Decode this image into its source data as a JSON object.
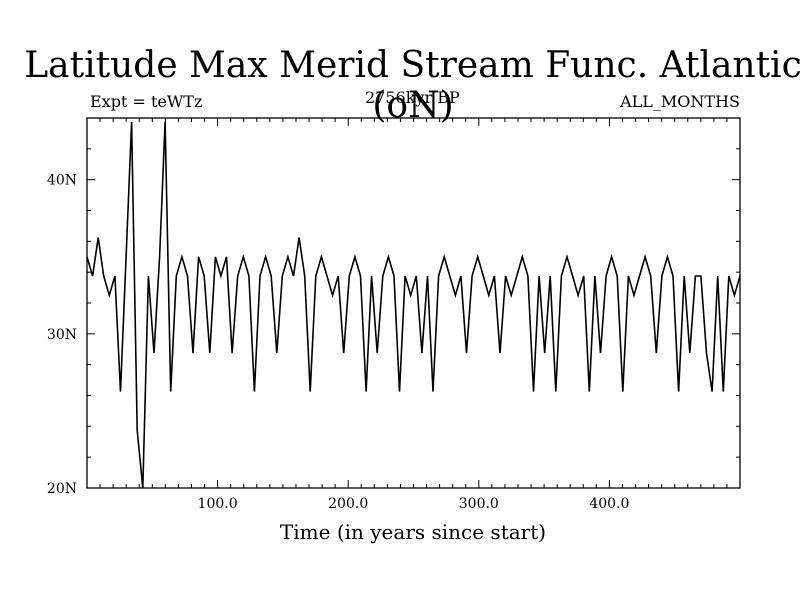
{
  "chart_data": {
    "type": "line",
    "title": "Latitude Max Merid Stream Func. Atlantic (oN)",
    "subtitle_left": "Expt = teWTz",
    "subtitle_center": "2756kyr BP",
    "subtitle_right": "ALL_MONTHS",
    "xlabel": "Time (in years since start)",
    "ylabel": "",
    "xlim": [
      0,
      500
    ],
    "ylim": [
      20,
      44
    ],
    "x_ticks": [
      100,
      200,
      300,
      400
    ],
    "x_tick_labels": [
      "100.0",
      "200.0",
      "300.0",
      "400.0"
    ],
    "y_ticks": [
      20,
      30,
      40
    ],
    "y_tick_labels": [
      "20N",
      "30N",
      "40N"
    ],
    "grid": false,
    "series": [
      {
        "color": "#000000",
        "values": [
          35.0,
          33.75,
          36.25,
          33.75,
          32.5,
          33.75,
          26.25,
          35.0,
          43.75,
          23.75,
          20.0,
          33.75,
          28.75,
          35.0,
          43.75,
          26.25,
          33.75,
          35.0,
          33.75,
          28.75,
          35.0,
          33.75,
          28.75,
          35.0,
          33.75,
          35.0,
          28.75,
          33.75,
          35.0,
          33.75,
          26.25,
          33.75,
          35.0,
          33.75,
          28.75,
          33.75,
          35.0,
          33.75,
          36.25,
          33.75,
          26.25,
          33.75,
          35.0,
          33.75,
          32.5,
          33.75,
          28.75,
          33.75,
          35.0,
          33.75,
          26.25,
          33.75,
          28.75,
          33.75,
          35.0,
          33.75,
          26.25,
          33.75,
          32.5,
          33.75,
          28.75,
          33.75,
          26.25,
          33.75,
          35.0,
          33.75,
          32.5,
          33.75,
          28.75,
          33.75,
          35.0,
          33.75,
          32.5,
          33.75,
          28.75,
          33.75,
          32.5,
          33.75,
          35.0,
          33.75,
          26.25,
          33.75,
          28.75,
          33.75,
          26.25,
          33.75,
          35.0,
          33.75,
          32.5,
          33.75,
          26.25,
          33.75,
          28.75,
          33.75,
          35.0,
          33.75,
          26.25,
          33.75,
          32.5,
          33.75,
          35.0,
          33.75,
          28.75,
          33.75,
          35.0,
          33.75,
          26.25,
          33.75,
          28.75,
          33.75,
          33.75,
          28.75,
          26.25,
          33.75,
          26.25,
          33.75,
          32.5,
          33.75
        ]
      }
    ]
  }
}
